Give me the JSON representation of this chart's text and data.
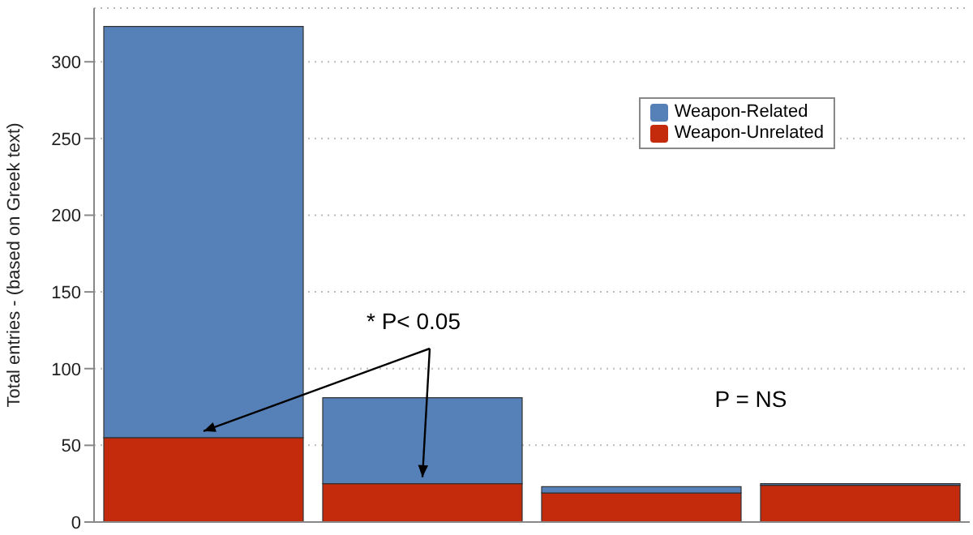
{
  "chart_data": {
    "type": "bar",
    "stacked": true,
    "ylabel": "Total entries  -  (based on Greek text)",
    "categories": [
      null,
      null,
      null,
      null
    ],
    "series": [
      {
        "name": "Weapon-Unrelated",
        "color": "#c42a0c",
        "values": [
          55,
          25,
          19,
          24
        ]
      },
      {
        "name": "Weapon-Related",
        "color": "#5680b8",
        "values": [
          268,
          56,
          4,
          1
        ]
      }
    ],
    "ylim": [
      0,
      335
    ],
    "yticks": [
      0,
      50,
      100,
      150,
      200,
      250,
      300
    ],
    "grid": "y",
    "legend": "top right",
    "annotations": [
      "* P< 0.05",
      "P = NS"
    ]
  }
}
